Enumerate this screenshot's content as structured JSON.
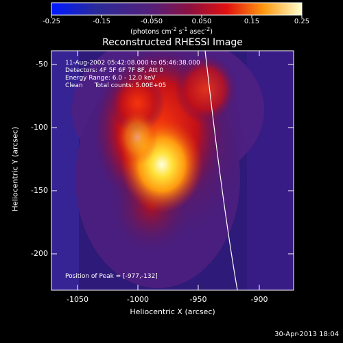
{
  "colorbar": {
    "ticks": [
      "-0.25",
      "-0.15",
      "-0.050",
      "0.050",
      "0.15",
      "0.25"
    ],
    "units_html": "(photons cm<sup>-2</sup> s<sup>-1</sup> asec<sup>-2</sup>)"
  },
  "plot": {
    "title": "Reconstructed RHESSI Image",
    "xlabel": "Heliocentric X (arcsec)",
    "ylabel": "Heliocentric Y (arcsec)",
    "x_ticks": [
      "-1050",
      "-1000",
      "-950",
      "-900"
    ],
    "y_ticks": [
      "-50",
      "-100",
      "-150",
      "-200"
    ]
  },
  "annotations": {
    "time_range": "11-Aug-2002 05:42:08.000 to 05:46:38.000",
    "detectors": "Detectors: 4F 5F 6F 7F 8F, Att 0",
    "energy": "Energy Range: 6.0 - 12.0 keV",
    "method": "Clean      Total counts: 5.00E+05",
    "peak": "Position of Peak = [-977,-132]"
  },
  "footer": {
    "timestamp": "30-Apr-2013 18:04"
  }
}
